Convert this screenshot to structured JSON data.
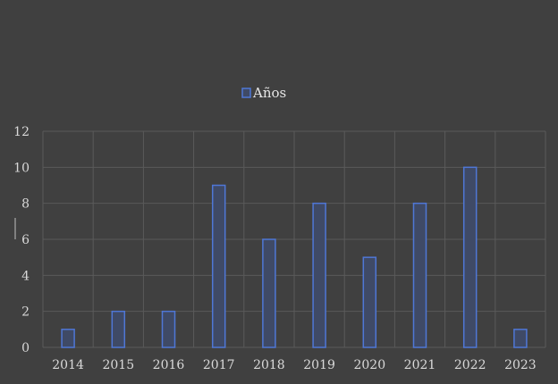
{
  "chart_data": {
    "type": "bar",
    "categories": [
      "2014",
      "2015",
      "2016",
      "2017",
      "2018",
      "2019",
      "2020",
      "2021",
      "2022",
      "2023"
    ],
    "series": [
      {
        "name": "Años",
        "values": [
          1,
          2,
          2,
          9,
          6,
          8,
          5,
          8,
          10,
          1
        ]
      }
    ],
    "ylim": [
      0,
      12
    ],
    "yticks": [
      "0",
      "2",
      "4",
      "6",
      "8",
      "10",
      "12"
    ],
    "grid": true,
    "legend_position": "top-center",
    "colors": {
      "background": "#404040",
      "bar_stroke": "#4f77d6",
      "gridline": "#5a5a5a",
      "text": "#d9d9d9"
    }
  }
}
